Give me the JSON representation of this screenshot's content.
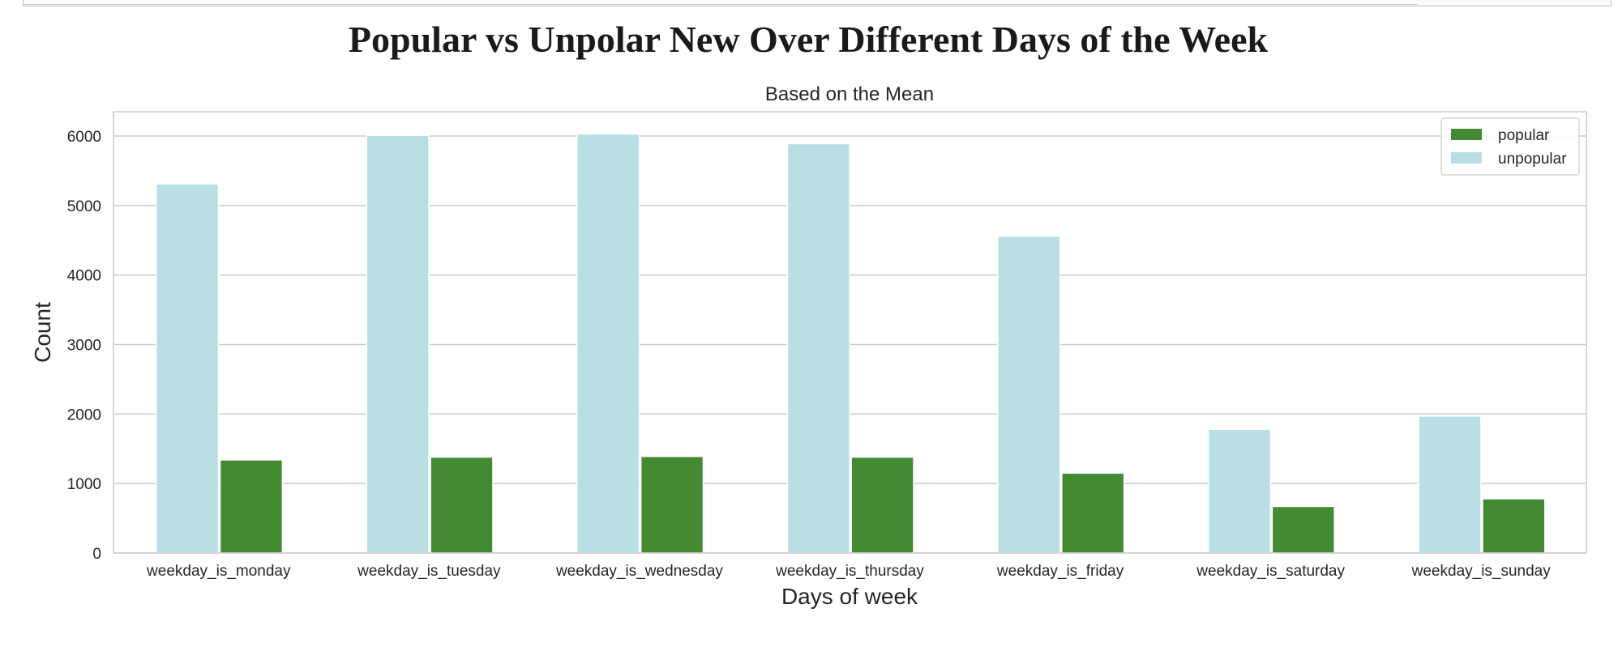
{
  "figure": {
    "suptitle": "Popular vs Unpolar New Over Different Days of the Week"
  },
  "chart_data": {
    "type": "bar",
    "title": "Based on the Mean",
    "xlabel": "Days of week",
    "ylabel": "Count",
    "ylim": [
      0,
      6350
    ],
    "yticks": [
      0,
      1000,
      2000,
      3000,
      4000,
      5000,
      6000
    ],
    "grid": true,
    "legend_position": "top-right",
    "categories": [
      "weekday_is_monday",
      "weekday_is_tuesday",
      "weekday_is_wednesday",
      "weekday_is_thursday",
      "weekday_is_friday",
      "weekday_is_saturday",
      "weekday_is_sunday"
    ],
    "series": [
      {
        "name": "unpopular",
        "color": "#b9dfe5",
        "values": [
          5310,
          6010,
          6030,
          5890,
          4560,
          1780,
          1970
        ]
      },
      {
        "name": "popular",
        "color": "#438a33",
        "values": [
          1340,
          1380,
          1390,
          1380,
          1150,
          670,
          780
        ]
      }
    ],
    "legend_order": [
      "popular",
      "unpopular"
    ]
  }
}
